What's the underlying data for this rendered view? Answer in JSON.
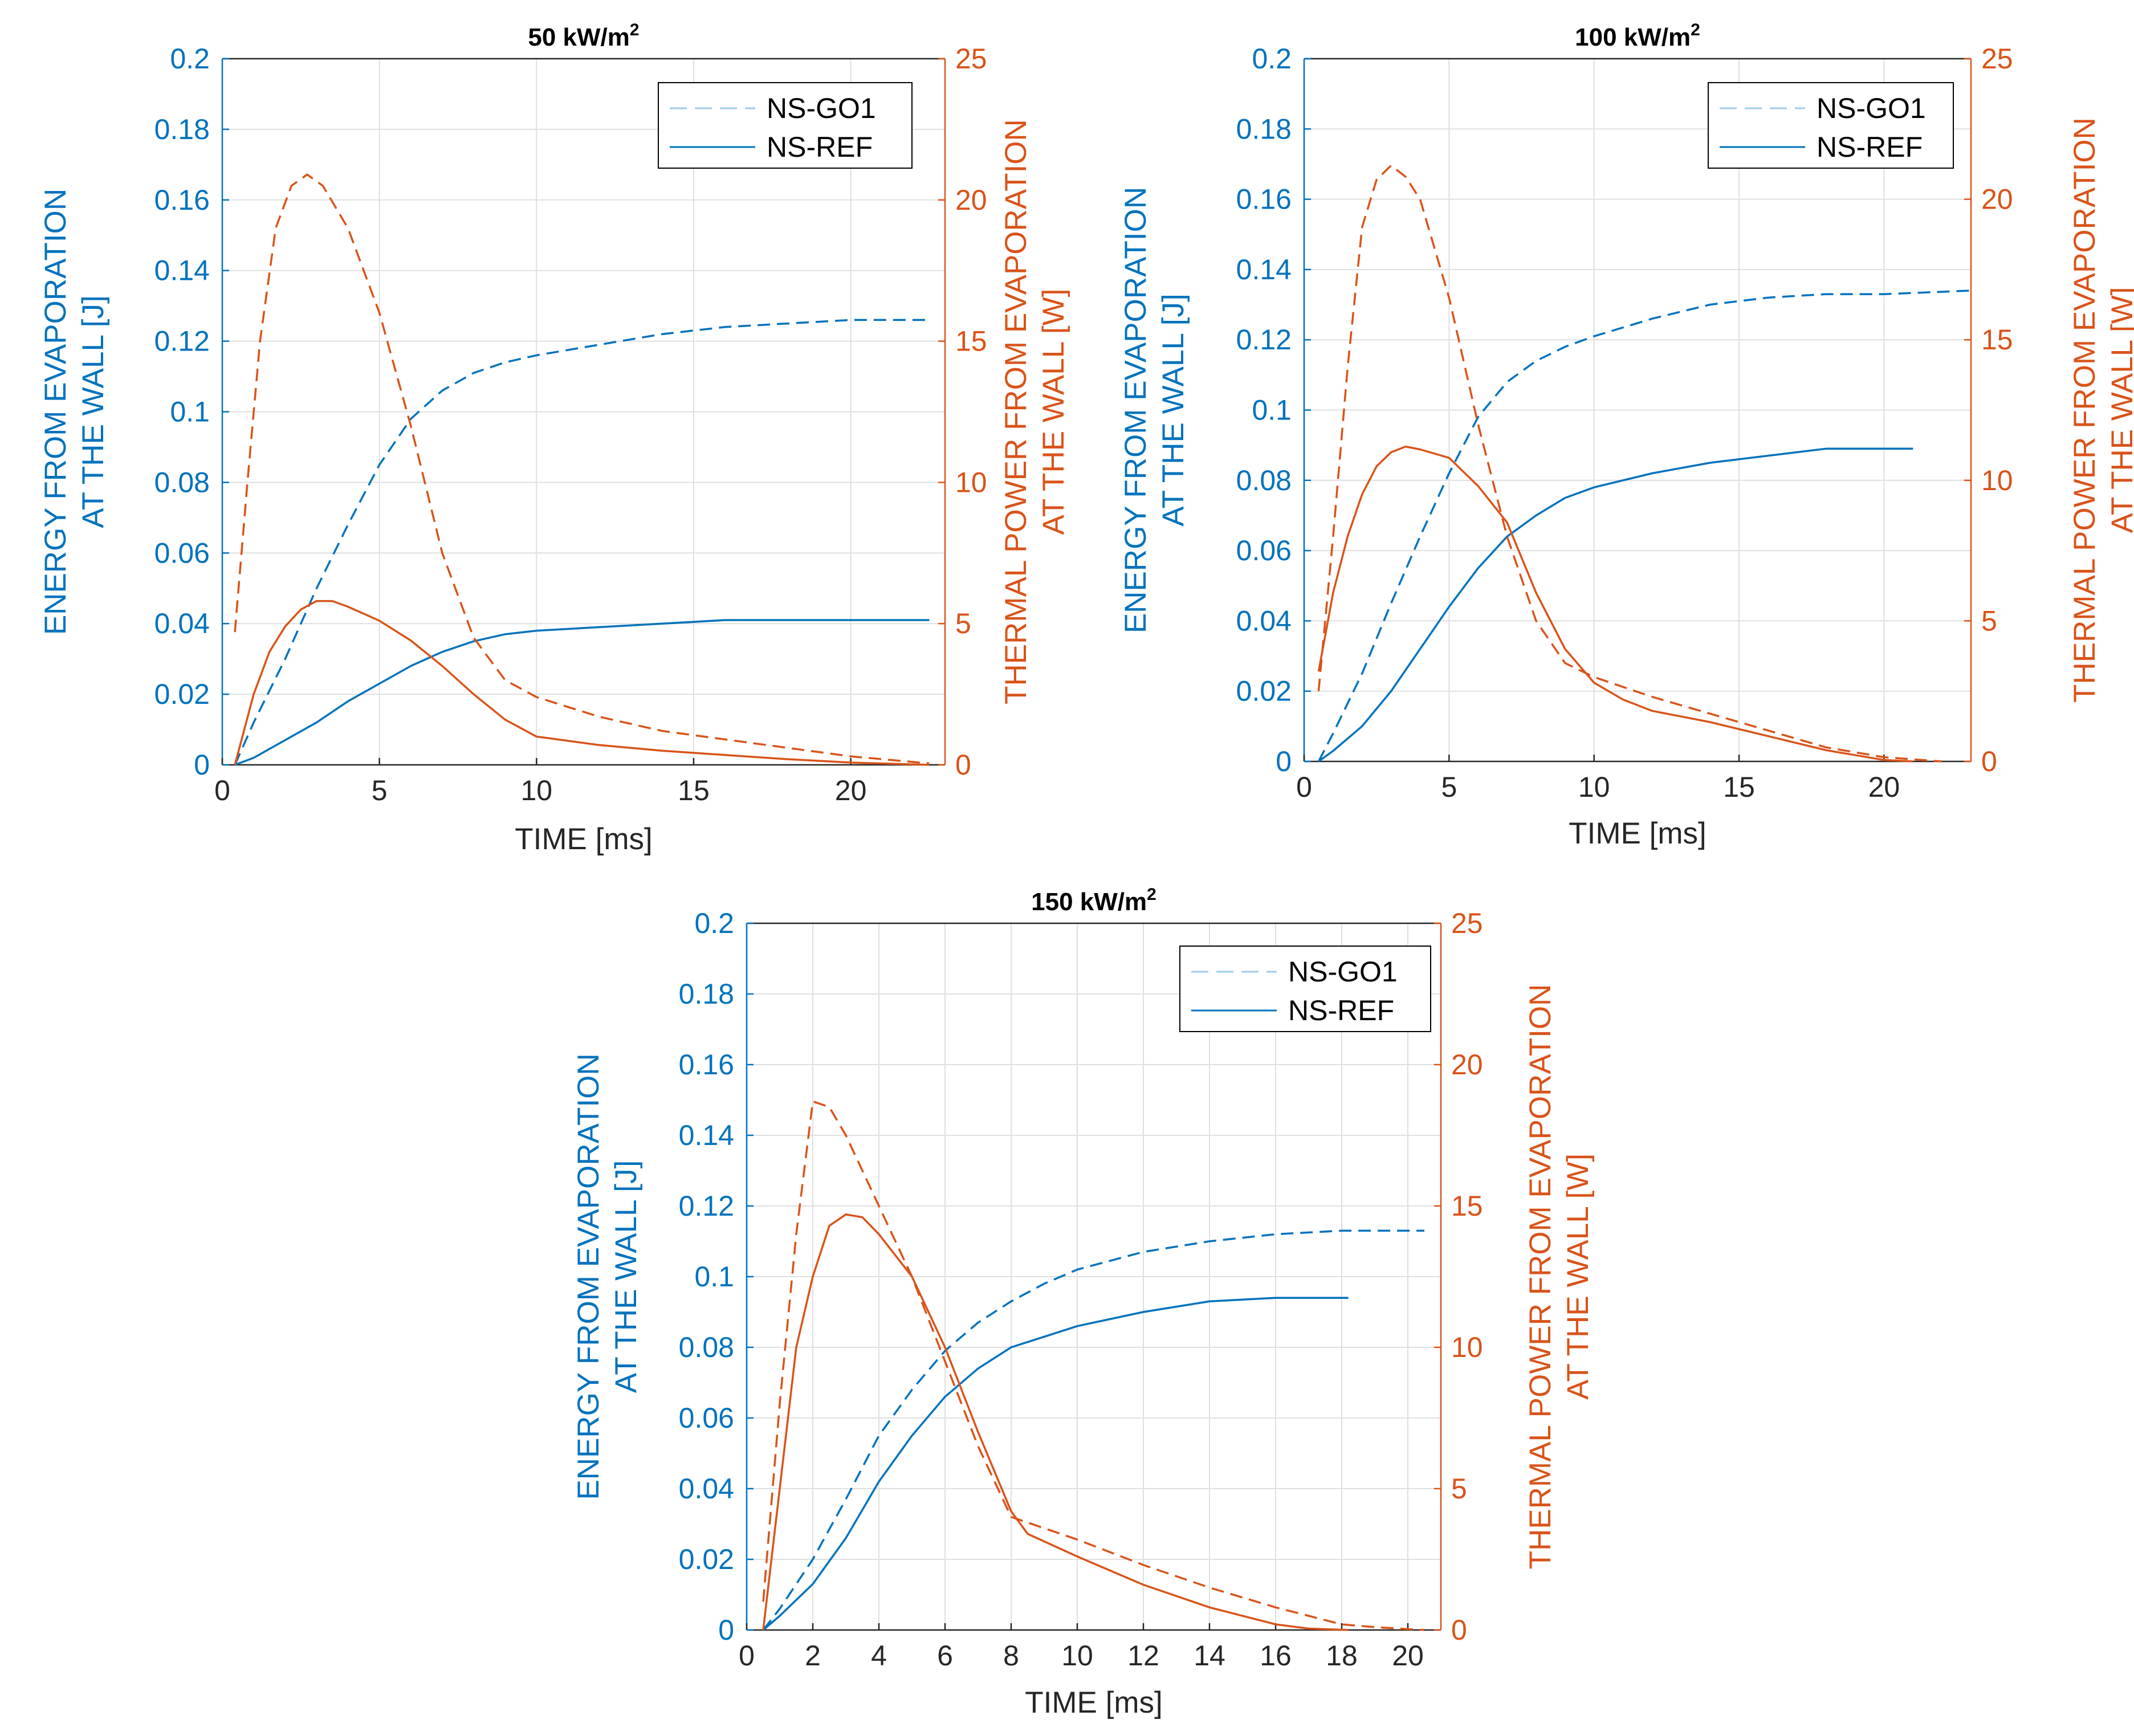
{
  "colors": {
    "energy": "#0072bd",
    "power": "#d95319",
    "grid": "#dfdfdf",
    "axis": "#262626"
  },
  "chart_data": [
    {
      "type": "line",
      "title": "50 kW/m",
      "title_sup": "2",
      "xlabel": "TIME [ms]",
      "ylabel_left": [
        "ENERGY FROM EVAPORATION",
        "AT THE WALL [J]"
      ],
      "ylabel_right": [
        "THERMAL POWER FROM EVAPORATION",
        "AT THE WALL [W]"
      ],
      "xlim": [
        0,
        23
      ],
      "xticks": [
        0,
        5,
        10,
        15,
        20
      ],
      "xtick_labels": [
        "0",
        "5",
        "10",
        "15",
        "20"
      ],
      "ylim_left": [
        0,
        0.2
      ],
      "yticks_left": [
        0,
        0.02,
        0.04,
        0.06,
        0.08,
        0.1,
        0.12,
        0.14,
        0.16,
        0.18,
        0.2
      ],
      "ytick_labels_left": [
        "0",
        "0.02",
        "0.04",
        "0.06",
        "0.08",
        "0.1",
        "0.12",
        "0.14",
        "0.16",
        "0.18",
        "0.2"
      ],
      "ylim_right": [
        0,
        25
      ],
      "yticks_right": [
        0,
        5,
        10,
        15,
        20,
        25
      ],
      "ytick_labels_right": [
        "0",
        "5",
        "10",
        "15",
        "20",
        "25"
      ],
      "legend": [
        {
          "name": "NS-GO1",
          "style": "dashed"
        },
        {
          "name": "NS-REF",
          "style": "solid"
        }
      ],
      "series": [
        {
          "name": "NS-GO1 energy",
          "axis": "left",
          "style": "dashed",
          "color": "energy",
          "x": [
            0.4,
            1,
            2,
            3,
            4,
            5,
            6,
            7,
            8,
            9,
            10,
            12,
            14,
            16,
            18,
            20,
            22.5
          ],
          "y": [
            0,
            0.012,
            0.03,
            0.05,
            0.068,
            0.085,
            0.098,
            0.106,
            0.111,
            0.114,
            0.116,
            0.119,
            0.122,
            0.124,
            0.125,
            0.126,
            0.126
          ]
        },
        {
          "name": "NS-REF energy",
          "axis": "left",
          "style": "solid",
          "color": "energy",
          "x": [
            0.4,
            1,
            2,
            3,
            4,
            5,
            6,
            7,
            8,
            9,
            10,
            12,
            14,
            16,
            18,
            20,
            22.5
          ],
          "y": [
            0,
            0.002,
            0.007,
            0.012,
            0.018,
            0.023,
            0.028,
            0.032,
            0.035,
            0.037,
            0.038,
            0.039,
            0.04,
            0.041,
            0.041,
            0.041,
            0.041
          ]
        },
        {
          "name": "NS-GO1 power",
          "axis": "right",
          "style": "dashed",
          "color": "power",
          "x": [
            0.4,
            0.8,
            1.2,
            1.7,
            2.2,
            2.7,
            3.2,
            4,
            5,
            6,
            7,
            8,
            9,
            10,
            12,
            14,
            16,
            18,
            20,
            22.5
          ],
          "y": [
            4.7,
            10,
            15,
            19,
            20.5,
            20.9,
            20.5,
            19,
            16,
            12,
            7.5,
            4.5,
            3,
            2.4,
            1.7,
            1.2,
            0.9,
            0.6,
            0.3,
            0.05
          ]
        },
        {
          "name": "NS-REF power",
          "axis": "right",
          "style": "solid",
          "color": "power",
          "x": [
            0.4,
            1,
            1.5,
            2,
            2.5,
            3,
            3.5,
            4,
            5,
            6,
            7,
            8,
            9,
            10,
            12,
            14,
            16,
            18,
            20,
            22.5
          ],
          "y": [
            0,
            2.5,
            4,
            4.9,
            5.5,
            5.8,
            5.8,
            5.6,
            5.1,
            4.4,
            3.5,
            2.5,
            1.6,
            1.0,
            0.7,
            0.5,
            0.35,
            0.2,
            0.08,
            0
          ]
        }
      ]
    },
    {
      "type": "line",
      "title": "100 kW/m",
      "title_sup": "2",
      "xlabel": "TIME [ms]",
      "ylabel_left": [
        "ENERGY FROM EVAPORATION",
        "AT THE WALL [J]"
      ],
      "ylabel_right": [
        "THERMAL POWER FROM EVAPORATION",
        "AT THE WALL [W]"
      ],
      "xlim": [
        0,
        23
      ],
      "xticks": [
        0,
        5,
        10,
        15,
        20
      ],
      "xtick_labels": [
        "0",
        "5",
        "10",
        "15",
        "20"
      ],
      "ylim_left": [
        0,
        0.2
      ],
      "yticks_left": [
        0,
        0.02,
        0.04,
        0.06,
        0.08,
        0.1,
        0.12,
        0.14,
        0.16,
        0.18,
        0.2
      ],
      "ytick_labels_left": [
        "0",
        "0.02",
        "0.04",
        "0.06",
        "0.08",
        "0.1",
        "0.12",
        "0.14",
        "0.16",
        "0.18",
        "0.2"
      ],
      "ylim_right": [
        0,
        25
      ],
      "yticks_right": [
        0,
        5,
        10,
        15,
        20,
        25
      ],
      "ytick_labels_right": [
        "0",
        "5",
        "10",
        "15",
        "20",
        "25"
      ],
      "legend": [
        {
          "name": "NS-GO1",
          "style": "dashed"
        },
        {
          "name": "NS-REF",
          "style": "solid"
        }
      ],
      "series": [
        {
          "name": "NS-GO1 energy",
          "axis": "left",
          "style": "dashed",
          "color": "energy",
          "x": [
            0.5,
            1,
            2,
            3,
            4,
            5,
            6,
            7,
            8,
            9,
            10,
            12,
            14,
            16,
            18,
            20,
            23
          ],
          "y": [
            0,
            0.008,
            0.025,
            0.045,
            0.064,
            0.082,
            0.098,
            0.108,
            0.114,
            0.118,
            0.121,
            0.126,
            0.13,
            0.132,
            0.133,
            0.133,
            0.134
          ]
        },
        {
          "name": "NS-REF energy",
          "axis": "left",
          "style": "solid",
          "color": "energy",
          "x": [
            0.5,
            1,
            2,
            3,
            4,
            5,
            6,
            7,
            8,
            9,
            10,
            12,
            14,
            16,
            18,
            20,
            21
          ],
          "y": [
            0,
            0.003,
            0.01,
            0.02,
            0.032,
            0.044,
            0.055,
            0.064,
            0.07,
            0.075,
            0.078,
            0.082,
            0.085,
            0.087,
            0.089,
            0.089,
            0.089
          ]
        },
        {
          "name": "NS-GO1 power",
          "axis": "right",
          "style": "dashed",
          "color": "power",
          "x": [
            0.5,
            1,
            1.5,
            2,
            2.5,
            3,
            3.5,
            4,
            5,
            6,
            7,
            8,
            9,
            10,
            12,
            14,
            16,
            18,
            20,
            22
          ],
          "y": [
            2.5,
            8,
            14,
            19,
            20.7,
            21.2,
            20.8,
            20,
            16.5,
            12,
            8,
            5,
            3.5,
            3,
            2.3,
            1.7,
            1.1,
            0.5,
            0.15,
            0
          ]
        },
        {
          "name": "NS-REF power",
          "axis": "right",
          "style": "solid",
          "color": "power",
          "x": [
            0.5,
            1,
            1.5,
            2,
            2.5,
            3,
            3.5,
            4,
            5,
            6,
            7,
            8,
            9,
            10,
            11,
            12,
            14,
            16,
            18,
            20,
            21
          ],
          "y": [
            3.2,
            6,
            8,
            9.5,
            10.5,
            11,
            11.2,
            11.1,
            10.8,
            9.8,
            8.5,
            6,
            4,
            2.8,
            2.2,
            1.8,
            1.4,
            0.9,
            0.4,
            0.05,
            0
          ]
        }
      ]
    },
    {
      "type": "line",
      "title": "150 kW/m",
      "title_sup": "2",
      "xlabel": "TIME [ms]",
      "ylabel_left": [
        "ENERGY FROM EVAPORATION",
        "AT THE WALL [J]"
      ],
      "ylabel_right": [
        "THERMAL POWER FROM EVAPORATION",
        "AT THE WALL [W]"
      ],
      "xlim": [
        0,
        21
      ],
      "xticks": [
        0,
        2,
        4,
        6,
        8,
        10,
        12,
        14,
        16,
        18,
        20
      ],
      "xtick_labels": [
        "0",
        "2",
        "4",
        "6",
        "8",
        "10",
        "12",
        "14",
        "16",
        "18",
        "20"
      ],
      "ylim_left": [
        0,
        0.2
      ],
      "yticks_left": [
        0,
        0.02,
        0.04,
        0.06,
        0.08,
        0.1,
        0.12,
        0.14,
        0.16,
        0.18,
        0.2
      ],
      "ytick_labels_left": [
        "0",
        "0.02",
        "0.04",
        "0.06",
        "0.08",
        "0.1",
        "0.12",
        "0.14",
        "0.16",
        "0.18",
        "0.2"
      ],
      "ylim_right": [
        0,
        25
      ],
      "yticks_right": [
        0,
        5,
        10,
        15,
        20,
        25
      ],
      "ytick_labels_right": [
        "0",
        "5",
        "10",
        "15",
        "20",
        "25"
      ],
      "legend": [
        {
          "name": "NS-GO1",
          "style": "dashed"
        },
        {
          "name": "NS-REF",
          "style": "solid"
        }
      ],
      "series": [
        {
          "name": "NS-GO1 energy",
          "axis": "left",
          "style": "dashed",
          "color": "energy",
          "x": [
            0.5,
            1,
            2,
            3,
            4,
            5,
            6,
            7,
            8,
            9,
            10,
            12,
            14,
            16,
            18,
            20.5
          ],
          "y": [
            0,
            0.006,
            0.02,
            0.037,
            0.055,
            0.068,
            0.079,
            0.087,
            0.093,
            0.098,
            0.102,
            0.107,
            0.11,
            0.112,
            0.113,
            0.113
          ]
        },
        {
          "name": "NS-REF energy",
          "axis": "left",
          "style": "solid",
          "color": "energy",
          "x": [
            0.5,
            1,
            2,
            3,
            4,
            5,
            6,
            7,
            8,
            9,
            10,
            12,
            14,
            16,
            18.2
          ],
          "y": [
            0,
            0.004,
            0.013,
            0.026,
            0.042,
            0.055,
            0.066,
            0.074,
            0.08,
            0.083,
            0.086,
            0.09,
            0.093,
            0.094,
            0.094
          ]
        },
        {
          "name": "NS-GO1 power",
          "axis": "right",
          "style": "dashed",
          "color": "power",
          "x": [
            0.5,
            1,
            1.5,
            2,
            2.5,
            3,
            4,
            5,
            6,
            7,
            8,
            8.5,
            10,
            12,
            14,
            16,
            18,
            19,
            20.5
          ],
          "y": [
            1,
            8,
            14,
            18.7,
            18.5,
            17.5,
            15,
            12.5,
            9.5,
            6.5,
            4,
            3.8,
            3.2,
            2.3,
            1.5,
            0.8,
            0.2,
            0.1,
            0
          ]
        },
        {
          "name": "NS-REF power",
          "axis": "right",
          "style": "solid",
          "color": "power",
          "x": [
            0.5,
            1,
            1.5,
            2,
            2.5,
            3,
            3.5,
            4,
            5,
            6,
            7,
            8,
            8.5,
            10,
            12,
            14,
            16,
            17,
            18.2
          ],
          "y": [
            0,
            5,
            10,
            12.5,
            14.3,
            14.7,
            14.6,
            14,
            12.5,
            10,
            7,
            4.2,
            3.4,
            2.6,
            1.6,
            0.8,
            0.2,
            0.05,
            0
          ]
        }
      ]
    }
  ]
}
